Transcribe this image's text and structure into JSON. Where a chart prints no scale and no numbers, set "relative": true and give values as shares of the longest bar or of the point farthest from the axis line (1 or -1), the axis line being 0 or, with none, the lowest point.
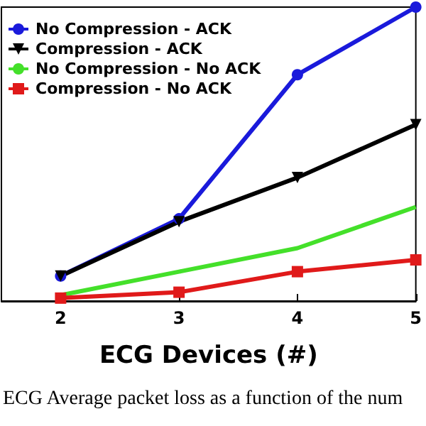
{
  "chart_data": {
    "type": "line",
    "relative": true,
    "xlabel": "ECG Devices (#)",
    "annotations": [
      "ECG Average packet loss as a function of the num"
    ],
    "x": [
      2,
      3,
      4,
      5
    ],
    "xlim": [
      1.5,
      5
    ],
    "xticks": [
      2,
      3,
      4,
      5
    ],
    "legend": "top left",
    "grid": false,
    "series": [
      {
        "name": "No Compression - ACK",
        "color": "#1a1adb",
        "marker": "circle",
        "values": [
          0.085,
          0.28,
          0.77,
          1
        ]
      },
      {
        "name": "Compression - ACK",
        "color": "#000000",
        "marker": "triangle",
        "values": [
          0.085,
          0.27,
          0.42,
          0.6
        ]
      },
      {
        "name": "No Compression - No ACK",
        "color": "#44e02a",
        "marker": "none",
        "values": [
          0.02,
          0.1,
          0.18,
          0.32
        ]
      },
      {
        "name": "Compression - No ACK",
        "color": "#e01a1a",
        "marker": "square",
        "values": [
          0.01,
          0.03,
          0.1,
          0.14
        ]
      }
    ]
  }
}
